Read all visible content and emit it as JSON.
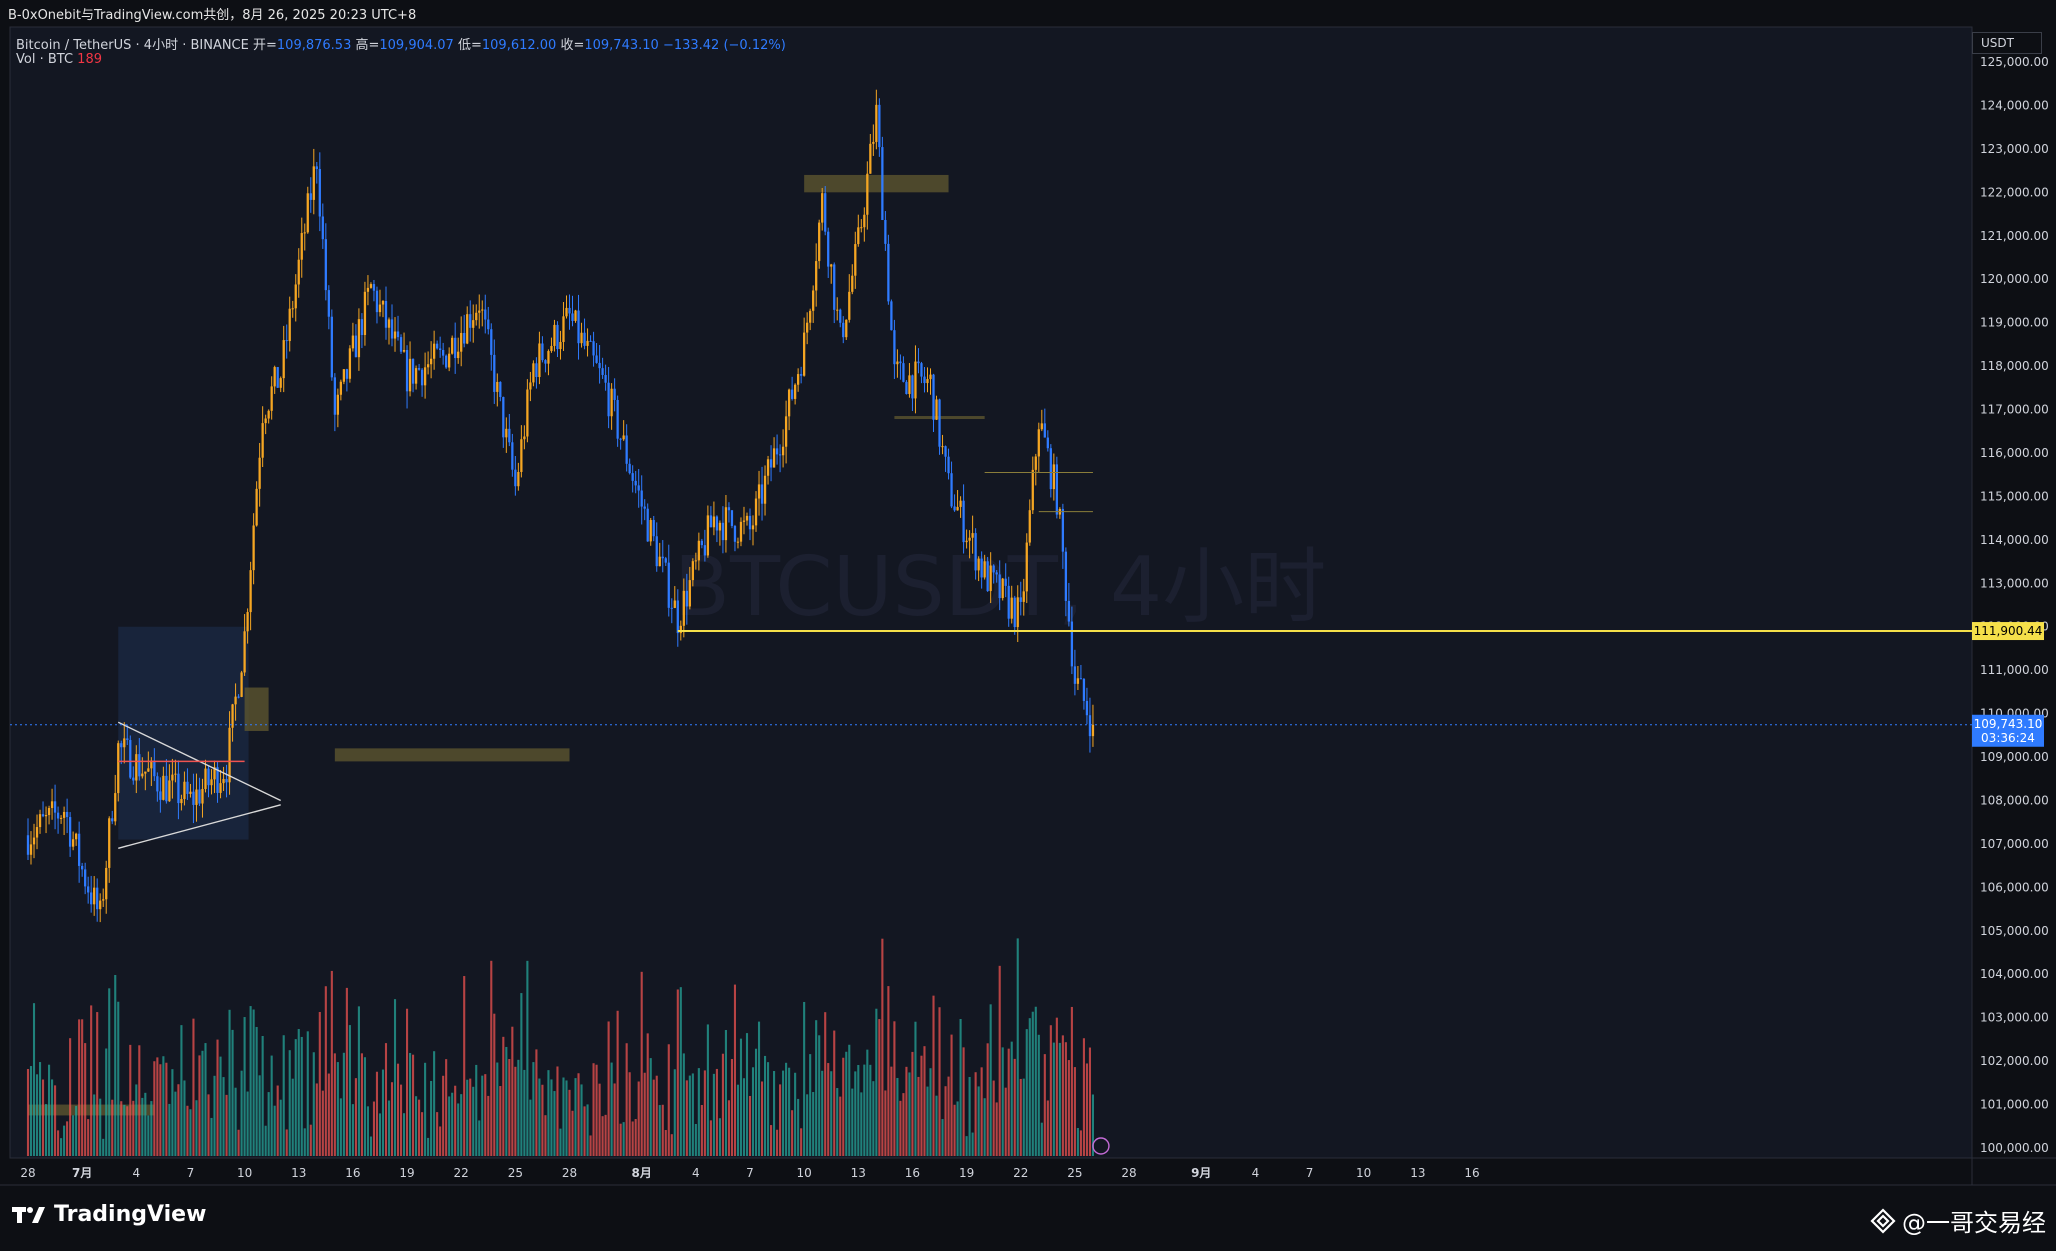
{
  "header": {
    "share_text": "B-0xOnebit与TradingView.com共创，8月 26, 2025 20:23 UTC+8"
  },
  "legend": {
    "symbol": "Bitcoin / TetherUS · 4小时 · BINANCE",
    "open_label": "开=",
    "open": "109,876.53",
    "high_label": "高=",
    "high": "109,904.07",
    "low_label": "低=",
    "low": "109,612.00",
    "close_label": "收=",
    "close": "109,743.10",
    "change": "−133.42 (−0.12%)",
    "vol_label": "Vol · BTC",
    "vol_value": "189"
  },
  "watermark": "BTCUSDT, 4小时",
  "price_axis": {
    "currency": "USDT",
    "last_price": "109,743.10",
    "countdown": "03:36:24",
    "level_label": "111,900.44"
  },
  "footer": {
    "brand": "TradingView",
    "author": "@一哥交易经"
  },
  "colors": {
    "background": "#0d0f14",
    "bull": "#f5a623",
    "bear": "#2f7bff",
    "vol_bull": "#26a69a",
    "vol_bear": "#ef5350",
    "level_line": "#f5e04a",
    "zone": "#5c5530"
  },
  "chart_data": {
    "type": "candlestick",
    "title": "Bitcoin / TetherUS · 4小时 · BINANCE",
    "y_axis": {
      "min": 100000,
      "max": 125000,
      "ticks": [
        "100,000.00",
        "101,000.00",
        "102,000.00",
        "103,000.00",
        "104,000.00",
        "105,000.00",
        "106,000.00",
        "107,000.00",
        "108,000.00",
        "109,000.00",
        "110,000.00",
        "111,000.00",
        "112,000.00",
        "113,000.00",
        "114,000.00",
        "115,000.00",
        "116,000.00",
        "117,000.00",
        "118,000.00",
        "119,000.00",
        "120,000.00",
        "121,000.00",
        "122,000.00",
        "123,000.00",
        "124,000.00",
        "125,000.00"
      ]
    },
    "x_axis": {
      "ticks": [
        "28",
        "7月",
        "4",
        "7",
        "10",
        "13",
        "16",
        "19",
        "22",
        "25",
        "28",
        "8月",
        "4",
        "7",
        "10",
        "13",
        "16",
        "19",
        "22",
        "25",
        "28",
        "9月",
        "4",
        "7",
        "10",
        "13",
        "16"
      ]
    },
    "price_path": [
      {
        "date": "2025-06-28",
        "price": 107200
      },
      {
        "date": "2025-06-30",
        "price": 107800
      },
      {
        "date": "2025-07-01",
        "price": 106400
      },
      {
        "date": "2025-07-02",
        "price": 105300
      },
      {
        "date": "2025-07-03",
        "price": 109200
      },
      {
        "date": "2025-07-05",
        "price": 108500
      },
      {
        "date": "2025-07-07",
        "price": 108000
      },
      {
        "date": "2025-07-09",
        "price": 108800
      },
      {
        "date": "2025-07-10",
        "price": 111800
      },
      {
        "date": "2025-07-11",
        "price": 117000
      },
      {
        "date": "2025-07-12",
        "price": 117800
      },
      {
        "date": "2025-07-14",
        "price": 122800
      },
      {
        "date": "2025-07-15",
        "price": 116800
      },
      {
        "date": "2025-07-17",
        "price": 119800
      },
      {
        "date": "2025-07-19",
        "price": 117800
      },
      {
        "date": "2025-07-21",
        "price": 118200
      },
      {
        "date": "2025-07-23",
        "price": 119500
      },
      {
        "date": "2025-07-25",
        "price": 115200
      },
      {
        "date": "2025-07-26",
        "price": 118000
      },
      {
        "date": "2025-07-28",
        "price": 119100
      },
      {
        "date": "2025-07-30",
        "price": 117500
      },
      {
        "date": "2025-08-01",
        "price": 114800
      },
      {
        "date": "2025-08-03",
        "price": 112200
      },
      {
        "date": "2025-08-05",
        "price": 114500
      },
      {
        "date": "2025-08-07",
        "price": 114200
      },
      {
        "date": "2025-08-09",
        "price": 116800
      },
      {
        "date": "2025-08-10",
        "price": 118500
      },
      {
        "date": "2025-08-11",
        "price": 121800
      },
      {
        "date": "2025-08-12",
        "price": 118600
      },
      {
        "date": "2025-08-13",
        "price": 120800
      },
      {
        "date": "2025-08-14",
        "price": 123800
      },
      {
        "date": "2025-08-15",
        "price": 117800
      },
      {
        "date": "2025-08-17",
        "price": 117600
      },
      {
        "date": "2025-08-18",
        "price": 115200
      },
      {
        "date": "2025-08-20",
        "price": 113200
      },
      {
        "date": "2025-08-22",
        "price": 112200
      },
      {
        "date": "2025-08-23",
        "price": 116800
      },
      {
        "date": "2025-08-24",
        "price": 115000
      },
      {
        "date": "2025-08-25",
        "price": 110800
      },
      {
        "date": "2025-08-26",
        "price": 109743
      }
    ],
    "horizontal_level": 111900.44,
    "last_price": 109743.1,
    "zones": [
      {
        "from": "2025-08-10",
        "to": "2025-08-18",
        "low": 122000,
        "high": 122400
      },
      {
        "from": "2025-07-15",
        "to": "2025-07-28",
        "low": 108900,
        "high": 109200
      },
      {
        "from": "2025-08-15",
        "to": "2025-08-20",
        "low": 116800,
        "high": 116850
      },
      {
        "from": "2025-07-10",
        "to": "2025-07-10",
        "low": 109600,
        "high": 110600
      },
      {
        "from": "2025-06-28",
        "to": "2025-07-05",
        "low": 100750,
        "high": 101000
      }
    ],
    "triangle": {
      "upper": [
        {
          "date": "2025-07-03",
          "price": 109800
        },
        {
          "date": "2025-07-12",
          "price": 108000
        }
      ],
      "lower": [
        {
          "date": "2025-07-03",
          "price": 106900
        },
        {
          "date": "2025-07-12",
          "price": 107900
        }
      ]
    },
    "volume_series": "Vol · BTC"
  }
}
